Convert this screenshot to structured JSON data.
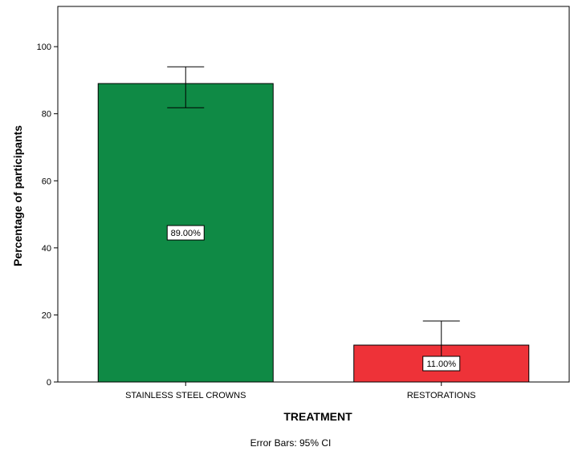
{
  "chart_data": {
    "type": "bar",
    "categories": [
      "STAINLESS STEEL CROWNS",
      "RESTORATIONS"
    ],
    "values": [
      89.0,
      11.0
    ],
    "data_labels": [
      "89.00%",
      "11.00%"
    ],
    "error_bars": {
      "lower": [
        81.8,
        3.8
      ],
      "upper": [
        94.0,
        18.2
      ]
    },
    "bar_colors": [
      "#0f8a45",
      "#ee3238"
    ],
    "xlabel": "TREATMENT",
    "ylabel": "Percentage of participants",
    "ylim": [
      0,
      112
    ],
    "yticks": [
      0,
      20,
      40,
      60,
      80,
      100
    ],
    "grid": false,
    "note": "Error Bars: 95% CI"
  }
}
